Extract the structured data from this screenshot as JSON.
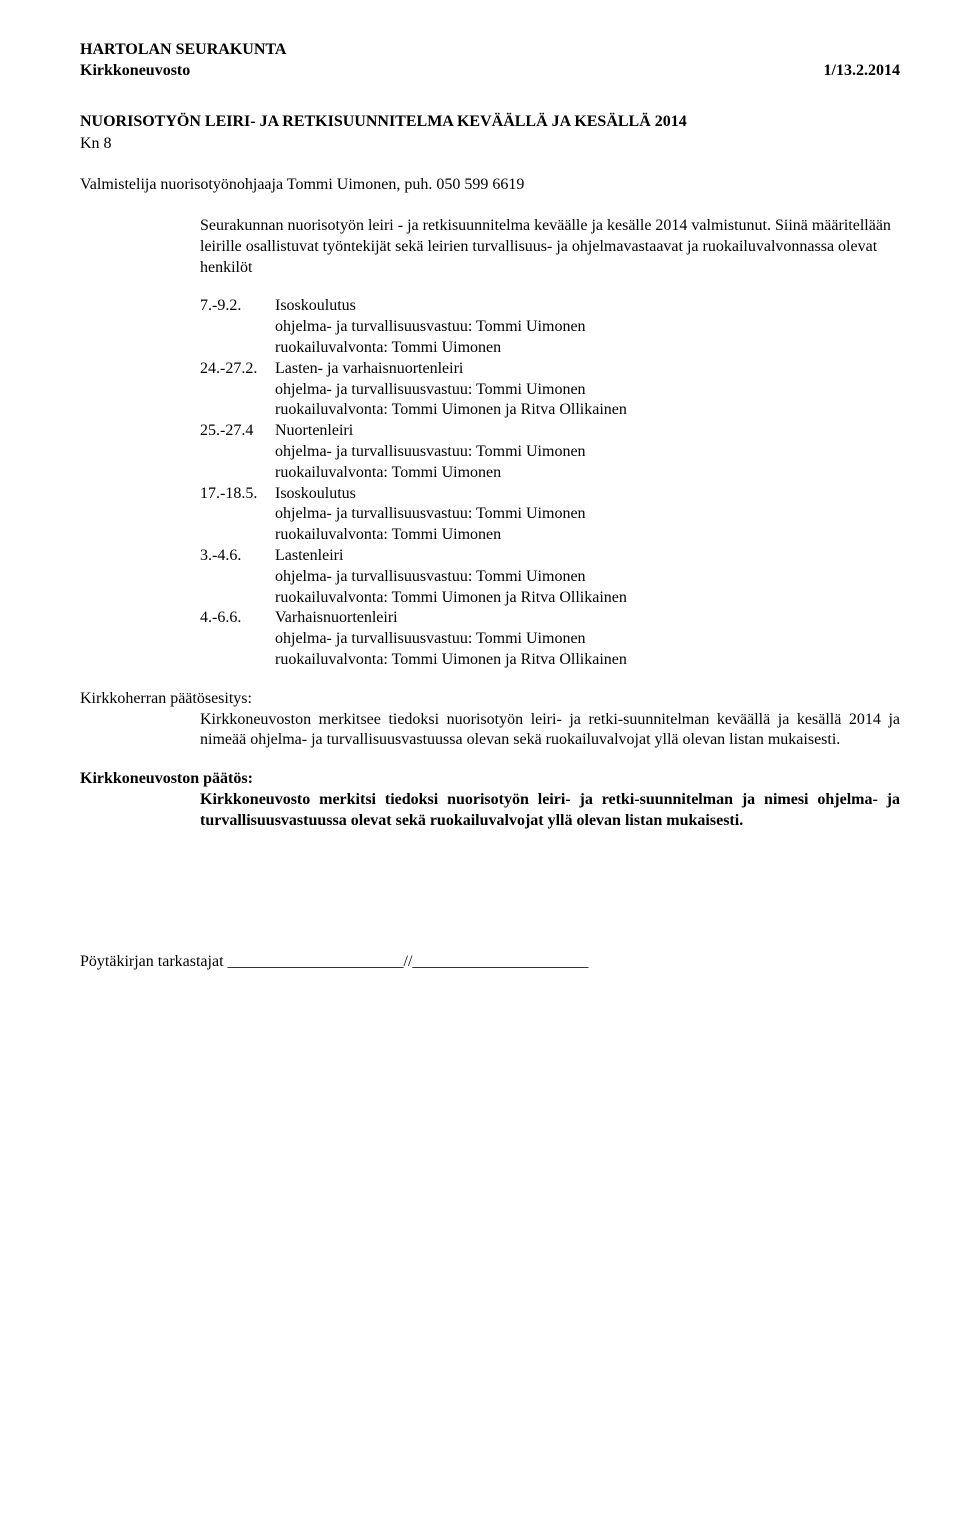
{
  "header": {
    "org": "HARTOLAN SEURAKUNTA",
    "board": "Kirkkoneuvosto",
    "ref": "1/13.2.2014"
  },
  "title": {
    "main": "NUORISOTYÖN LEIRI- JA RETKISUUNNITELMA KEVÄÄLLÄ JA KESÄLLÄ 2014",
    "kn": "Kn 8"
  },
  "preparer": "Valmistelija nuorisotyönohjaaja Tommi Uimonen, puh. 050 599 6619",
  "intro": "Seurakunnan nuorisotyön leiri - ja retkisuunnitelma keväälle ja kesälle 2014 valmistunut. Siinä määritellään leirille osallistuvat työntekijät sekä leirien turvallisuus- ja ohjelmavastaavat ja ruokailuvalvonnassa olevat henkilöt",
  "schedule": [
    {
      "date": "7.-9.2.",
      "name": "Isoskoulutus",
      "lines": [
        "ohjelma- ja turvallisuusvastuu: Tommi Uimonen",
        "ruokailuvalvonta: Tommi Uimonen"
      ]
    },
    {
      "date": "24.-27.2.",
      "name": "Lasten- ja varhaisnuortenleiri",
      "lines": [
        "ohjelma- ja turvallisuusvastuu: Tommi Uimonen",
        "ruokailuvalvonta: Tommi Uimonen ja Ritva Ollikainen"
      ]
    },
    {
      "date": "25.-27.4",
      "name": "Nuortenleiri",
      "lines": [
        "ohjelma- ja turvallisuusvastuu: Tommi Uimonen",
        "ruokailuvalvonta: Tommi Uimonen"
      ]
    },
    {
      "date": "17.-18.5.",
      "name": "Isoskoulutus",
      "lines": [
        "ohjelma- ja turvallisuusvastuu: Tommi Uimonen",
        "ruokailuvalvonta: Tommi Uimonen"
      ]
    },
    {
      "date": "3.-4.6.",
      "name": "Lastenleiri",
      "lines": [
        "ohjelma- ja turvallisuusvastuu: Tommi Uimonen",
        "ruokailuvalvonta: Tommi Uimonen ja Ritva Ollikainen"
      ]
    },
    {
      "date": "4.-6.6.",
      "name": "Varhaisnuortenleiri",
      "lines": [
        "ohjelma- ja turvallisuusvastuu: Tommi Uimonen",
        "ruokailuvalvonta: Tommi Uimonen ja Ritva Ollikainen"
      ]
    }
  ],
  "proposal": {
    "heading": "Kirkkoherran päätösesitys:",
    "body": "Kirkkoneuvoston merkitsee tiedoksi nuorisotyön leiri- ja retki-suunnitelman keväällä ja kesällä 2014 ja nimeää ohjelma- ja turvallisuusvastuussa olevan sekä ruokailuvalvojat yllä olevan listan mukaisesti."
  },
  "decision": {
    "heading": "Kirkkoneuvoston päätös:",
    "body": "Kirkkoneuvosto merkitsi tiedoksi nuorisotyön leiri- ja retki-suunnitelman ja nimesi ohjelma- ja turvallisuusvastuussa olevat sekä ruokailuvalvojat yllä olevan listan mukaisesti."
  },
  "footer": {
    "label": "Pöytäkirjan tarkastajat",
    "slashes": "______________________//______________________"
  }
}
